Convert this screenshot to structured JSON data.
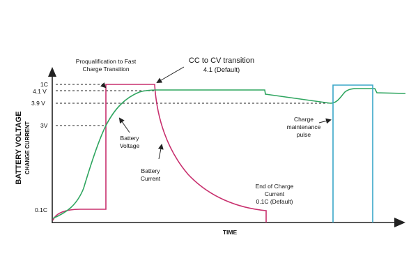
{
  "axes": {
    "y_title": "BATTERY VOLTAGE",
    "y_subtitle": "CHANGE CURRENT",
    "x_title": "TIME",
    "ticks": {
      "one_c": "1C",
      "v41": "4.1 V",
      "v39": "3.9 V",
      "v3": "3V",
      "c01": "0.1C"
    }
  },
  "annotations": {
    "preq_line1": "Proqualification to Fast",
    "preq_line2": "Charge Transition",
    "cccv_line1": "CC to CV transition",
    "cccv_line2": "4.1 (Default)",
    "bv_line1": "Battery",
    "bv_line2": "Voltage",
    "bc_line1": "Battery",
    "bc_line2": "Current",
    "eoc_line1": "End of Charge",
    "eoc_line2": "Current",
    "eoc_line3": "0.1C  (Default)",
    "cm_line1": "Charge",
    "cm_line2": "maintenance",
    "cm_line3": "pulse"
  },
  "colors": {
    "voltage": "#2ea55f",
    "current": "#c8306e",
    "pulse": "#3aa7c8",
    "axis": "#222222"
  }
}
